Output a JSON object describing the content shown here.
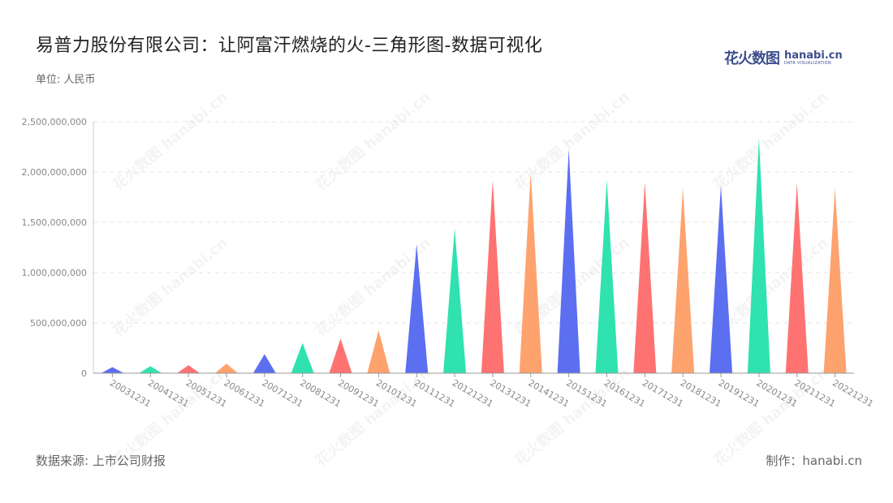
{
  "title": "易普力股份有限公司：让阿富汗燃烧的火-三角形图-数据可视化",
  "unit": "单位: 人民币",
  "source": "数据来源: 上市公司财报",
  "maker": "制作：hanabi.cn",
  "logo": {
    "cn": "花火数图",
    "en": "hanabi.cn",
    "sub": "DATA VISUALIZATION"
  },
  "watermark": "花火数图 hanabi.cn",
  "colors": [
    "#5b6ff0",
    "#2fe2b0",
    "#fe7371",
    "#fea26e"
  ],
  "chart_data": {
    "type": "bar",
    "mark": "triangle",
    "categories": [
      "20031231",
      "20041231",
      "20051231",
      "20061231",
      "20071231",
      "20081231",
      "20091231",
      "20101231",
      "20111231",
      "20121231",
      "20131231",
      "20141231",
      "20151231",
      "20161231",
      "20171231",
      "20181231",
      "20191231",
      "20201231",
      "20211231",
      "20221231"
    ],
    "values": [
      60000000,
      70000000,
      80000000,
      95000000,
      190000000,
      300000000,
      345000000,
      425000000,
      1280000000,
      1440000000,
      1920000000,
      2000000000,
      2230000000,
      1920000000,
      1900000000,
      1840000000,
      1870000000,
      2340000000,
      1890000000,
      1840000000
    ],
    "yticks": [
      "0",
      "500,000,000",
      "1,000,000,000",
      "1,500,000,000",
      "2,000,000,000",
      "2,500,000,000"
    ],
    "ylim": [
      0,
      2500000000
    ],
    "grid": true
  }
}
